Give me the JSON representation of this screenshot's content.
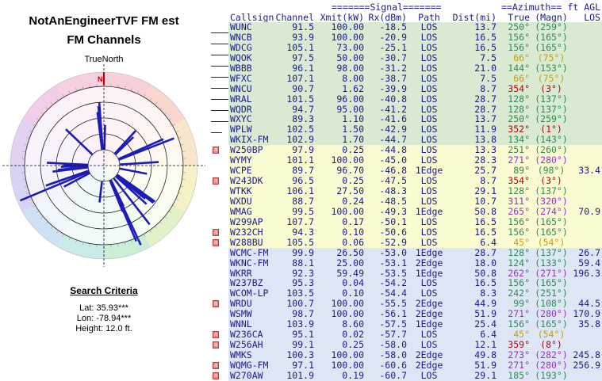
{
  "title_line1": "NotAnEngineerTVF FM est",
  "title_line2": "FM Channels",
  "polar": {
    "north_label": "TrueNorth",
    "north_marker": "N"
  },
  "search_criteria": {
    "heading": "Search Criteria",
    "lat": "Lat: 35.93***",
    "lon": "Lon: -78.94***",
    "height": "Height: 12.0 ft."
  },
  "table": {
    "header_line1": {
      "signal": "=======Signal=======",
      "azimuth": "==Azimuth==",
      "ftagl": "ft AGL"
    },
    "columns": {
      "callsign": "Callsign",
      "channel": "Channel",
      "xmit": "Xmit(kW)",
      "rx": "Rx(dBm)",
      "path": "Path",
      "dist": "Dist(mi)",
      "true": "True",
      "magn": "(Magn)",
      "los": "LOS"
    },
    "rows": [
      {
        "cs": "WUNC",
        "ch": "91.5",
        "xm": "100.00",
        "rx": "-18.5",
        "pa": "LOS",
        "di": "13.7",
        "tr": "250°",
        "mg": "(259°)",
        "ag": "",
        "c": "#2e8b57",
        "bg": "#d9ead3",
        "ic": false
      },
      {
        "cs": "WNCB",
        "ch": "93.9",
        "xm": "100.00",
        "rx": "-20.9",
        "pa": "LOS",
        "di": "16.5",
        "tr": "156°",
        "mg": "(165°)",
        "ag": "",
        "c": "#2e8b57",
        "bg": "#d9ead3",
        "ic": false
      },
      {
        "cs": "WDCG",
        "ch": "105.1",
        "xm": "73.00",
        "rx": "-25.1",
        "pa": "LOS",
        "di": "16.5",
        "tr": "156°",
        "mg": "(165°)",
        "ag": "",
        "c": "#2e8b57",
        "bg": "#d9ead3",
        "ic": false
      },
      {
        "cs": "WQOK",
        "ch": "97.5",
        "xm": "50.00",
        "rx": "-30.7",
        "pa": "LOS",
        "di": "7.5",
        "tr": "66°",
        "mg": "(75°)",
        "ag": "",
        "c": "#c8a000",
        "bg": "#d9ead3",
        "ic": false
      },
      {
        "cs": "WBBB",
        "ch": "96.1",
        "xm": "98.00",
        "rx": "-31.2",
        "pa": "LOS",
        "di": "21.0",
        "tr": "144°",
        "mg": "(153°)",
        "ag": "",
        "c": "#2e8b57",
        "bg": "#d9ead3",
        "ic": false
      },
      {
        "cs": "WFXC",
        "ch": "107.1",
        "xm": "8.00",
        "rx": "-38.7",
        "pa": "LOS",
        "di": "7.5",
        "tr": "66°",
        "mg": "(75°)",
        "ag": "",
        "c": "#c8a000",
        "bg": "#d9ead3",
        "ic": false
      },
      {
        "cs": "WNCU",
        "ch": "90.7",
        "xm": "1.62",
        "rx": "-39.9",
        "pa": "LOS",
        "di": "8.7",
        "tr": "354°",
        "mg": "(3°)",
        "ag": "",
        "c": "#c00000",
        "bg": "#d9ead3",
        "ic": false
      },
      {
        "cs": "WRAL",
        "ch": "101.5",
        "xm": "96.00",
        "rx": "-40.8",
        "pa": "LOS",
        "di": "28.7",
        "tr": "128°",
        "mg": "(137°)",
        "ag": "",
        "c": "#2e8b57",
        "bg": "#d9ead3",
        "ic": false
      },
      {
        "cs": "WQDR",
        "ch": "94.7",
        "xm": "95.00",
        "rx": "-41.2",
        "pa": "LOS",
        "di": "28.7",
        "tr": "128°",
        "mg": "(137°)",
        "ag": "",
        "c": "#2e8b57",
        "bg": "#d9ead3",
        "ic": false
      },
      {
        "cs": "WXYC",
        "ch": "89.3",
        "xm": "1.10",
        "rx": "-41.6",
        "pa": "LOS",
        "di": "13.7",
        "tr": "250°",
        "mg": "(259°)",
        "ag": "",
        "c": "#2e8b57",
        "bg": "#d9ead3",
        "ic": false
      },
      {
        "cs": "WPLW",
        "ch": "102.5",
        "xm": "1.50",
        "rx": "-42.9",
        "pa": "LOS",
        "di": "11.9",
        "tr": "352°",
        "mg": "(1°)",
        "ag": "",
        "c": "#c00000",
        "bg": "#d9ead3",
        "ic": false
      },
      {
        "cs": "WKIX-FM",
        "ch": "102.9",
        "xm": "1.70",
        "rx": "-44.7",
        "pa": "LOS",
        "di": "13.8",
        "tr": "134°",
        "mg": "(143°)",
        "ag": "",
        "c": "#2e8b57",
        "bg": "#d9ead3",
        "ic": false
      },
      {
        "cs": "W250BP",
        "ch": "97.9",
        "xm": "0.25",
        "rx": "-44.8",
        "pa": "LOS",
        "di": "13.3",
        "tr": "251°",
        "mg": "(260°)",
        "ag": "",
        "c": "#2e8b57",
        "bg": "#fbfbd2",
        "ic": true
      },
      {
        "cs": "WYMY",
        "ch": "101.1",
        "xm": "100.00",
        "rx": "-45.0",
        "pa": "LOS",
        "di": "28.3",
        "tr": "271°",
        "mg": "(280°)",
        "ag": "",
        "c": "#9932cc",
        "bg": "#fbfbd2",
        "ic": false
      },
      {
        "cs": "WCPE",
        "ch": "89.7",
        "xm": "96.70",
        "rx": "-46.8",
        "pa": "1Edge",
        "di": "25.7",
        "tr": "89°",
        "mg": "(98°)",
        "ag": "33.4",
        "c": "#2e8b57",
        "bg": "#fbfbd2",
        "ic": false
      },
      {
        "cs": "W243DK",
        "ch": "96.5",
        "xm": "0.25",
        "rx": "-47.5",
        "pa": "LOS",
        "di": "8.7",
        "tr": "354°",
        "mg": "(3°)",
        "ag": "",
        "c": "#c00000",
        "bg": "#fbfbd2",
        "ic": true
      },
      {
        "cs": "WTKK",
        "ch": "106.1",
        "xm": "27.50",
        "rx": "-48.3",
        "pa": "LOS",
        "di": "29.1",
        "tr": "128°",
        "mg": "(137°)",
        "ag": "",
        "c": "#2e8b57",
        "bg": "#fbfbd2",
        "ic": false
      },
      {
        "cs": "WXDU",
        "ch": "88.7",
        "xm": "0.24",
        "rx": "-48.5",
        "pa": "LOS",
        "di": "10.7",
        "tr": "311°",
        "mg": "(320°)",
        "ag": "",
        "c": "#9932cc",
        "bg": "#fbfbd2",
        "ic": false
      },
      {
        "cs": "WMAG",
        "ch": "99.5",
        "xm": "100.00",
        "rx": "-49.3",
        "pa": "1Edge",
        "di": "50.8",
        "tr": "265°",
        "mg": "(274°)",
        "ag": "70.9",
        "c": "#9932cc",
        "bg": "#fbfbd2",
        "ic": false
      },
      {
        "cs": "W299AP",
        "ch": "107.7",
        "xm": "0.17",
        "rx": "-50.1",
        "pa": "LOS",
        "di": "16.5",
        "tr": "156°",
        "mg": "(165°)",
        "ag": "",
        "c": "#2e8b57",
        "bg": "#fbfbd2",
        "ic": false
      },
      {
        "cs": "W232CH",
        "ch": "94.3",
        "xm": "0.10",
        "rx": "-50.6",
        "pa": "LOS",
        "di": "16.5",
        "tr": "156°",
        "mg": "(165°)",
        "ag": "",
        "c": "#2e8b57",
        "bg": "#fbfbd2",
        "ic": true
      },
      {
        "cs": "W288BU",
        "ch": "105.5",
        "xm": "0.06",
        "rx": "-52.9",
        "pa": "LOS",
        "di": "6.4",
        "tr": "45°",
        "mg": "(54°)",
        "ag": "",
        "c": "#c8a000",
        "bg": "#fbfbd2",
        "ic": true
      },
      {
        "cs": "WCMC-FM",
        "ch": "99.9",
        "xm": "26.50",
        "rx": "-53.0",
        "pa": "1Edge",
        "di": "28.7",
        "tr": "128°",
        "mg": "(137°)",
        "ag": "26.7",
        "c": "#2e8b57",
        "bg": "#dde6f5",
        "ic": false
      },
      {
        "cs": "WKNC-FM",
        "ch": "88.1",
        "xm": "25.00",
        "rx": "-53.1",
        "pa": "2Edge",
        "di": "18.0",
        "tr": "124°",
        "mg": "(133°)",
        "ag": "59.4",
        "c": "#2e8b57",
        "bg": "#dde6f5",
        "ic": false
      },
      {
        "cs": "WKRR",
        "ch": "92.3",
        "xm": "59.49",
        "rx": "-53.5",
        "pa": "1Edge",
        "di": "50.8",
        "tr": "262°",
        "mg": "(271°)",
        "ag": "196.3",
        "c": "#9932cc",
        "bg": "#dde6f5",
        "ic": false
      },
      {
        "cs": "W237BZ",
        "ch": "95.3",
        "xm": "0.04",
        "rx": "-54.2",
        "pa": "LOS",
        "di": "16.5",
        "tr": "156°",
        "mg": "(165°)",
        "ag": "",
        "c": "#2e8b57",
        "bg": "#dde6f5",
        "ic": false
      },
      {
        "cs": "WCOM-LP",
        "ch": "103.5",
        "xm": "0.10",
        "rx": "-54.4",
        "pa": "LOS",
        "di": "8.3",
        "tr": "242°",
        "mg": "(251°)",
        "ag": "",
        "c": "#2e8b57",
        "bg": "#dde6f5",
        "ic": false
      },
      {
        "cs": "WRDU",
        "ch": "100.7",
        "xm": "100.00",
        "rx": "-55.5",
        "pa": "2Edge",
        "di": "44.9",
        "tr": "99°",
        "mg": "(108°)",
        "ag": "44.5",
        "c": "#2e8b57",
        "bg": "#dde6f5",
        "ic": true
      },
      {
        "cs": "WSMW",
        "ch": "98.7",
        "xm": "100.00",
        "rx": "-56.1",
        "pa": "2Edge",
        "di": "51.9",
        "tr": "271°",
        "mg": "(280°)",
        "ag": "170.9",
        "c": "#9932cc",
        "bg": "#dde6f5",
        "ic": false
      },
      {
        "cs": "WNNL",
        "ch": "103.9",
        "xm": "8.60",
        "rx": "-57.5",
        "pa": "1Edge",
        "di": "25.4",
        "tr": "156°",
        "mg": "(165°)",
        "ag": "35.8",
        "c": "#2e8b57",
        "bg": "#dde6f5",
        "ic": false
      },
      {
        "cs": "W236CA",
        "ch": "95.1",
        "xm": "0.02",
        "rx": "-57.7",
        "pa": "LOS",
        "di": "6.4",
        "tr": "45°",
        "mg": "(54°)",
        "ag": "",
        "c": "#c8a000",
        "bg": "#dde6f5",
        "ic": true
      },
      {
        "cs": "W256AH",
        "ch": "99.1",
        "xm": "0.25",
        "rx": "-58.0",
        "pa": "LOS",
        "di": "12.1",
        "tr": "359°",
        "mg": "(8°)",
        "ag": "",
        "c": "#c00000",
        "bg": "#dde6f5",
        "ic": true
      },
      {
        "cs": "WMKS",
        "ch": "100.3",
        "xm": "100.00",
        "rx": "-58.0",
        "pa": "2Edge",
        "di": "49.8",
        "tr": "273°",
        "mg": "(282°)",
        "ag": "245.8",
        "c": "#9932cc",
        "bg": "#dde6f5",
        "ic": false
      },
      {
        "cs": "WQMG-FM",
        "ch": "97.1",
        "xm": "100.00",
        "rx": "-60.6",
        "pa": "2Edge",
        "di": "51.9",
        "tr": "271°",
        "mg": "(280°)",
        "ag": "256.9",
        "c": "#9932cc",
        "bg": "#dde6f5",
        "ic": true
      },
      {
        "cs": "W270AW",
        "ch": "101.9",
        "xm": "0.19",
        "rx": "-60.7",
        "pa": "LOS",
        "di": "29.1",
        "tr": "185°",
        "mg": "(193°)",
        "ag": "",
        "c": "#2e8b57",
        "bg": "#dde6f5",
        "ic": true
      }
    ]
  }
}
